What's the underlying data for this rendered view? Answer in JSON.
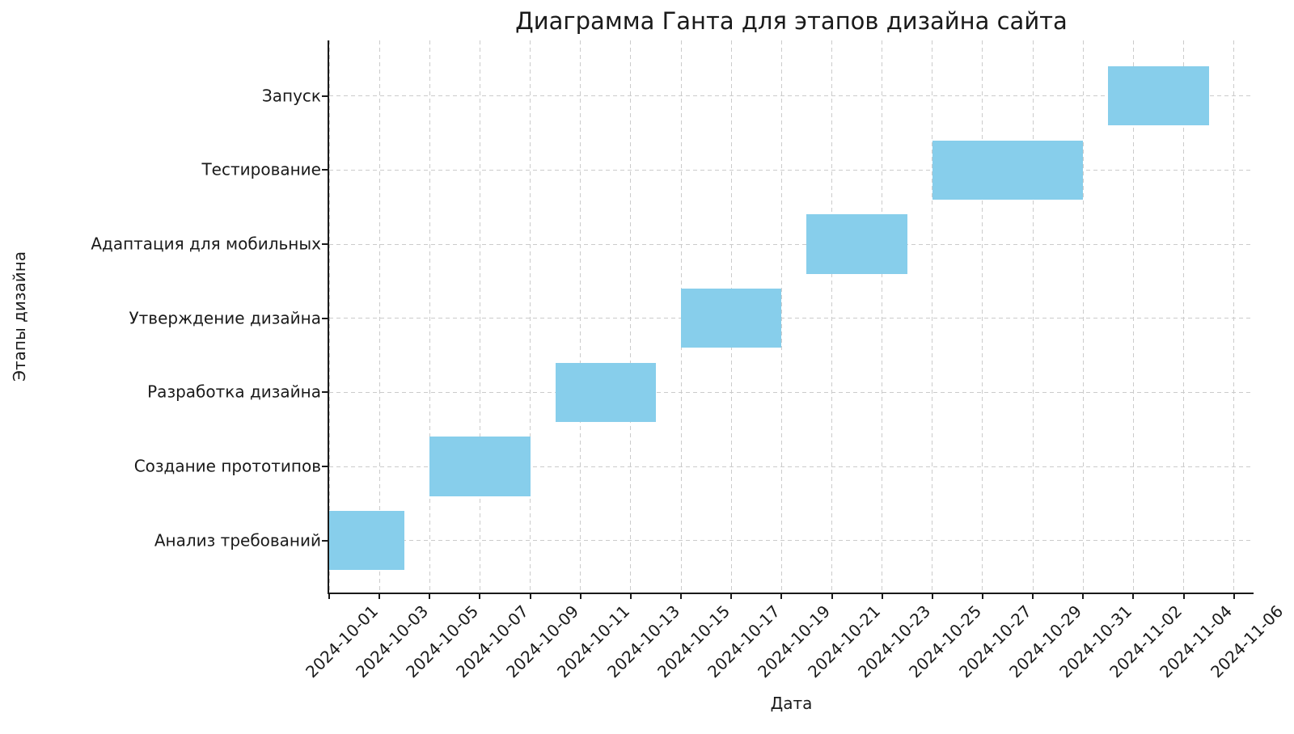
{
  "chart_data": {
    "type": "bar",
    "variant": "gantt-horizontal",
    "title": "Диаграмма Ганта для этапов дизайна сайта",
    "xlabel": "Дата",
    "ylabel": "Этапы дизайна",
    "bar_color": "#87CEEB",
    "grid_color": "#cbcbcb",
    "axis_color": "#1a1a1a",
    "background_color": "#ffffff",
    "grid": true,
    "grid_style": "dashed",
    "legend": "none",
    "x_min": "2024-10-01",
    "x_tick_interval_days": 2,
    "x_tick_labels": [
      "2024-10-01",
      "2024-10-03",
      "2024-10-05",
      "2024-10-07",
      "2024-10-09",
      "2024-10-11",
      "2024-10-13",
      "2024-10-15",
      "2024-10-17",
      "2024-10-19",
      "2024-10-21",
      "2024-10-23",
      "2024-10-25",
      "2024-10-27",
      "2024-10-29",
      "2024-10-31",
      "2024-11-02",
      "2024-11-04",
      "2024-11-06"
    ],
    "categories_bottom_to_top": [
      "Анализ требований",
      "Создание прототипов",
      "Разработка дизайна",
      "Утверждение дизайна",
      "Адаптация для мобильных",
      "Тестирование",
      "Запуск"
    ],
    "tasks": [
      {
        "label": "Анализ требований",
        "start": "2024-10-01",
        "end": "2024-10-04",
        "duration_days": 3
      },
      {
        "label": "Создание прототипов",
        "start": "2024-10-05",
        "end": "2024-10-09",
        "duration_days": 4
      },
      {
        "label": "Разработка дизайна",
        "start": "2024-10-10",
        "end": "2024-10-14",
        "duration_days": 4
      },
      {
        "label": "Утверждение дизайна",
        "start": "2024-10-15",
        "end": "2024-10-19",
        "duration_days": 4
      },
      {
        "label": "Адаптация для мобильных",
        "start": "2024-10-20",
        "end": "2024-10-24",
        "duration_days": 4
      },
      {
        "label": "Тестирование",
        "start": "2024-10-25",
        "end": "2024-10-31",
        "duration_days": 6
      },
      {
        "label": "Запуск",
        "start": "2024-11-01",
        "end": "2024-11-05",
        "duration_days": 4
      }
    ]
  }
}
